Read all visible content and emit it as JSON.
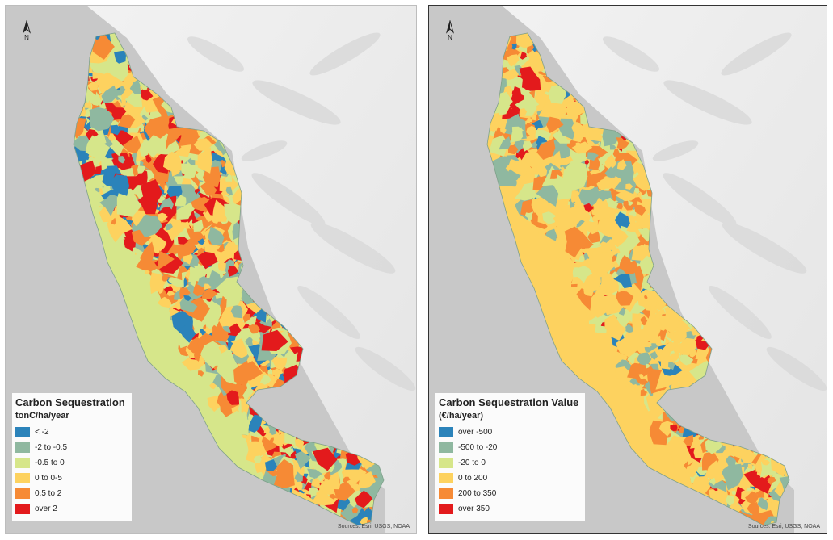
{
  "maps": [
    {
      "legend_title": "Carbon Sequestration",
      "legend_unit": "tonC/ha/year",
      "classes": [
        {
          "label": "< -2",
          "color": "#2b83ba"
        },
        {
          "label": "-2 to -0.5",
          "color": "#8fb8a0"
        },
        {
          "label": "-0.5 to 0",
          "color": "#d6e68a"
        },
        {
          "label": "0 to 0-5",
          "color": "#fdd25f"
        },
        {
          "label": "0.5 to 2",
          "color": "#f68a35"
        },
        {
          "label": "over 2",
          "color": "#e31a1c"
        }
      ],
      "attribution": "Sources: Esri, USGS, NOAA",
      "north_label": "N"
    },
    {
      "legend_title": "Carbon Sequestration Value",
      "legend_unit": "(€/ha/year)",
      "classes": [
        {
          "label": "over -500",
          "color": "#2b83ba"
        },
        {
          "label": "-500 to -20",
          "color": "#8fb8a0"
        },
        {
          "label": "-20 to 0",
          "color": "#d6e68a"
        },
        {
          "label": "0 to 200",
          "color": "#fdd25f"
        },
        {
          "label": "200 to 350",
          "color": "#f68a35"
        },
        {
          "label": "over 350",
          "color": "#e31a1c"
        }
      ],
      "attribution": "Sources: Esri, USGS, NOAA",
      "north_label": "N"
    }
  ]
}
